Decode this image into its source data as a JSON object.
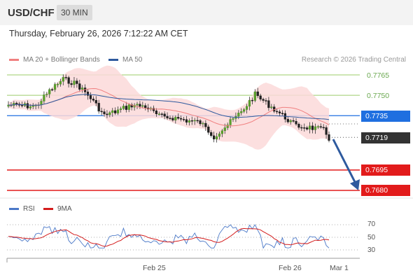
{
  "header": {
    "symbol": "USD/CHF",
    "timeframe": "30 MIN"
  },
  "datetime": "Thursday, February 26, 2026 7:12:22 AM CET",
  "legend": {
    "ma20_label": "MA 20 + Bollinger Bands",
    "ma50_label": "MA 50",
    "ma20_color": "#f08080",
    "ma50_color": "#2e5a9e"
  },
  "credit": "Research © 2026 Trading Central",
  "levels": {
    "l7765": "0.7765",
    "l7750": "0.7750",
    "l7735": "0.7735",
    "l7719": "0.7719",
    "l7695": "0.7695",
    "l7680": "0.7680"
  },
  "rsi_legend": {
    "rsi_label": "RSI",
    "ma_label": "9MA",
    "rsi_color": "#4a78c8",
    "ma_color": "#d41c1c"
  },
  "rsi_ticks": [
    "70",
    "50",
    "30"
  ],
  "x_ticks": [
    "Feb 25",
    "Feb 26",
    "Mar 1"
  ],
  "chart_data": {
    "type": "line",
    "title": "USD/CHF",
    "ylim": [
      0.767,
      0.7775
    ],
    "series": [
      {
        "name": "MA 20 + Bollinger Bands",
        "color": "#f08080"
      },
      {
        "name": "MA 50",
        "color": "#2e5a9e"
      }
    ],
    "resistance": [
      0.7765,
      0.775,
      0.7735
    ],
    "last_price": 0.7719,
    "support": [
      0.7695,
      0.768
    ],
    "x_ticks": [
      "Feb 25",
      "Feb 26",
      "Mar 1"
    ],
    "rsi": {
      "series": [
        "RSI",
        "9MA"
      ],
      "ticks": [
        70,
        50,
        30
      ]
    }
  }
}
